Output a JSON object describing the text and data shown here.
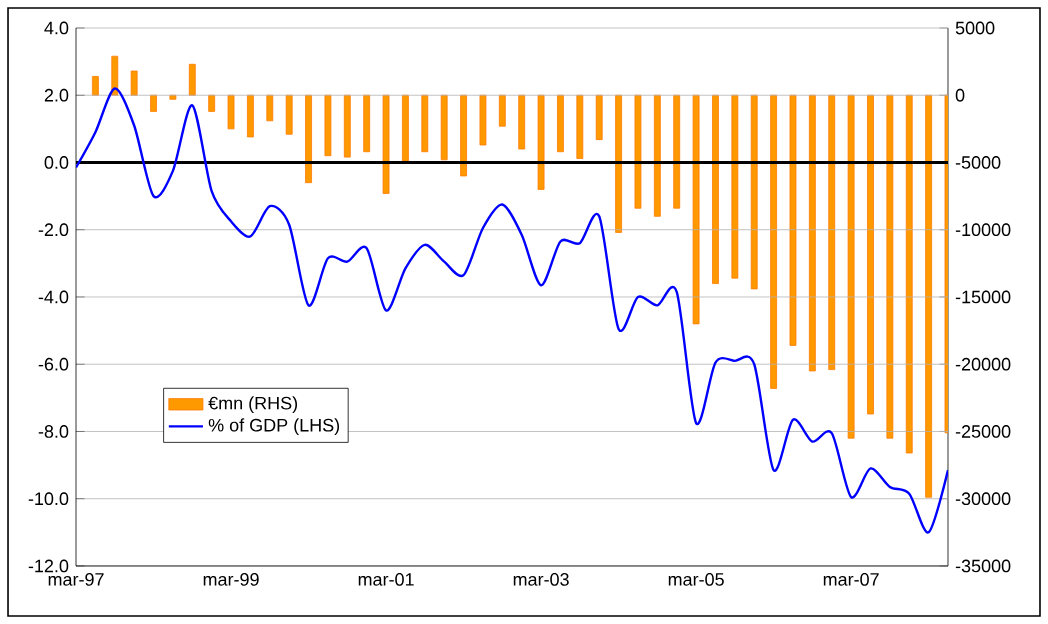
{
  "chart_data": {
    "type": "bar",
    "categories": [
      "mar-97",
      null,
      null,
      null,
      null,
      null,
      null,
      null,
      "mar-99",
      null,
      null,
      null,
      null,
      null,
      null,
      null,
      "mar-01",
      null,
      null,
      null,
      null,
      null,
      null,
      null,
      "mar-03",
      null,
      null,
      null,
      null,
      null,
      null,
      null,
      "mar-05",
      null,
      null,
      null,
      null,
      null,
      null,
      null,
      "mar-07",
      null,
      null,
      null,
      null,
      null
    ],
    "series": [
      {
        "name": "€mn (RHS)",
        "axis": "y2",
        "color": "#ff9900",
        "values": [
          null,
          1400,
          2900,
          1800,
          -1200,
          -300,
          2300,
          -1200,
          -2500,
          -3100,
          -1900,
          -2900,
          -6500,
          -4500,
          -4600,
          -4200,
          -7300,
          -4900,
          -4200,
          -4800,
          -6000,
          -3700,
          -2300,
          -4000,
          -7000,
          -4200,
          -4700,
          -3300,
          -10200,
          -8400,
          -9000,
          -8400,
          -17000,
          -14000,
          -13600,
          -14400,
          -21800,
          -18600,
          -20500,
          -20400,
          -25500,
          -23700,
          -25500,
          -26600,
          -29900,
          -25100
        ]
      },
      {
        "name": "% of GDP (LHS)",
        "type": "line",
        "color": "#0000ff",
        "values": [
          -0.15,
          0.9,
          2.2,
          1.1,
          -1.0,
          -0.25,
          1.7,
          -0.85,
          -1.75,
          -2.2,
          -1.3,
          -1.85,
          -4.25,
          -2.85,
          -2.95,
          -2.55,
          -4.4,
          -3.15,
          -2.45,
          -2.95,
          -3.35,
          -1.95,
          -1.25,
          -2.15,
          -3.65,
          -2.35,
          -2.4,
          -1.6,
          -4.95,
          -4.0,
          -4.25,
          -3.85,
          -7.75,
          -5.95,
          -5.9,
          -6.0,
          -9.15,
          -7.65,
          -8.3,
          -8.05,
          -9.95,
          -9.1,
          -9.65,
          -9.85,
          -11.0,
          -9.15
        ]
      }
    ],
    "ylim": [
      -12,
      4
    ],
    "yticks": [
      {
        "value": -12,
        "label": "-12.0"
      },
      {
        "value": -10,
        "label": "-10.0"
      },
      {
        "value": -8,
        "label": "-8.0"
      },
      {
        "value": -6,
        "label": "-6.0"
      },
      {
        "value": -4,
        "label": "-4.0"
      },
      {
        "value": -2,
        "label": "-2.0"
      },
      {
        "value": 0,
        "label": "0.0"
      },
      {
        "value": 2,
        "label": "2.0"
      },
      {
        "value": 4,
        "label": "4.0"
      }
    ],
    "y2lim": [
      -35000,
      5000
    ],
    "y2ticks": [
      -35000,
      -30000,
      -25000,
      -20000,
      -15000,
      -10000,
      -5000,
      0,
      5000
    ],
    "ref_lines": [
      {
        "axis": "y",
        "value": 0,
        "color": "#000000"
      }
    ],
    "grid": "y",
    "legend": "left",
    "marker": "none",
    "line_style": "solid"
  }
}
